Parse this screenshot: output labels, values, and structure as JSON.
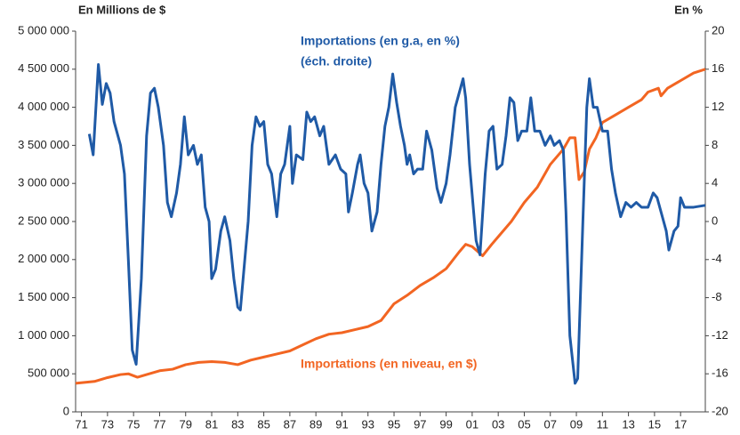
{
  "chart_data": {
    "type": "line",
    "y_label": "En Millions de $",
    "y2_label": "En %",
    "xlim": [
      1970.55,
      2018.9
    ],
    "xticks": [
      {
        "value": 1971,
        "label": "71"
      },
      {
        "value": 1973,
        "label": "73"
      },
      {
        "value": 1975,
        "label": "75"
      },
      {
        "value": 1977,
        "label": "77"
      },
      {
        "value": 1979,
        "label": "79"
      },
      {
        "value": 1981,
        "label": "81"
      },
      {
        "value": 1983,
        "label": "83"
      },
      {
        "value": 1985,
        "label": "85"
      },
      {
        "value": 1987,
        "label": "87"
      },
      {
        "value": 1989,
        "label": "89"
      },
      {
        "value": 1991,
        "label": "91"
      },
      {
        "value": 1993,
        "label": "93"
      },
      {
        "value": 1995,
        "label": "95"
      },
      {
        "value": 1997,
        "label": "97"
      },
      {
        "value": 1999,
        "label": "99"
      },
      {
        "value": 2001,
        "label": "01"
      },
      {
        "value": 2003,
        "label": "03"
      },
      {
        "value": 2005,
        "label": "05"
      },
      {
        "value": 2007,
        "label": "07"
      },
      {
        "value": 2009,
        "label": "09"
      },
      {
        "value": 2011,
        "label": "11"
      },
      {
        "value": 2013,
        "label": "13"
      },
      {
        "value": 2015,
        "label": "15"
      },
      {
        "value": 2017,
        "label": "17"
      }
    ],
    "ylim": [
      0,
      5000000
    ],
    "yticks": [
      0,
      {
        "value": 500000,
        "label": "500 000"
      },
      {
        "value": 1000000,
        "label": "1 000 000"
      },
      {
        "value": 1500000,
        "label": "1 500 000"
      },
      {
        "value": 2000000,
        "label": "2 000 000"
      },
      {
        "value": 2500000,
        "label": "2 500 000"
      },
      {
        "value": 3000000,
        "label": "3 000 000"
      },
      {
        "value": 3500000,
        "label": "3 500 000"
      },
      {
        "value": 4000000,
        "label": "4 000 000"
      },
      {
        "value": 4500000,
        "label": "4 500 000"
      },
      {
        "value": 5000000,
        "label": "5 000 000"
      }
    ],
    "y2lim": [
      -20,
      20
    ],
    "y2ticks": [
      -20,
      -16,
      -12,
      -8,
      -4,
      0,
      4,
      8,
      12,
      16,
      20
    ],
    "grid": false,
    "series": [
      {
        "name": "Importations (en niveau, en $)",
        "color": "#f26522",
        "axis": "y",
        "x": [
          1970.55,
          1972,
          1973,
          1974,
          1974.6,
          1975.3,
          1976,
          1977,
          1978,
          1979,
          1980,
          1981,
          1982,
          1983,
          1984,
          1985,
          1986,
          1987,
          1988,
          1989,
          1990,
          1991,
          1992,
          1993,
          1994,
          1995,
          1996,
          1997,
          1998,
          1999,
          2000,
          2000.5,
          2001,
          2001.8,
          2002.5,
          2003,
          2004,
          2005,
          2006,
          2007,
          2008,
          2008.5,
          2008.9,
          2009.2,
          2009.6,
          2010,
          2010.5,
          2011,
          2012,
          2013,
          2014,
          2014.5,
          2015.3,
          2015.5,
          2016,
          2017,
          2018,
          2018.9
        ],
        "values": [
          375000,
          400000,
          450000,
          490000,
          500000,
          455000,
          490000,
          540000,
          560000,
          620000,
          650000,
          660000,
          650000,
          620000,
          680000,
          720000,
          760000,
          800000,
          880000,
          960000,
          1020000,
          1040000,
          1080000,
          1120000,
          1200000,
          1420000,
          1530000,
          1660000,
          1760000,
          1880000,
          2100000,
          2200000,
          2170000,
          2050000,
          2200000,
          2300000,
          2500000,
          2750000,
          2950000,
          3250000,
          3450000,
          3600000,
          3600000,
          3050000,
          3150000,
          3450000,
          3600000,
          3800000,
          3900000,
          4000000,
          4100000,
          4200000,
          4250000,
          4150000,
          4250000,
          4350000,
          4450000,
          4500000
        ]
      },
      {
        "name": "Importations (en g.a, en %)",
        "note": "(éch. droite)",
        "color": "#1f5aa6",
        "axis": "y2",
        "x": [
          1971.6,
          1971.9,
          1972.3,
          1972.6,
          1972.9,
          1973.2,
          1973.5,
          1974,
          1974.3,
          1974.6,
          1974.9,
          1975.2,
          1975.6,
          1976,
          1976.3,
          1976.6,
          1976.9,
          1977.3,
          1977.6,
          1977.9,
          1978.3,
          1978.6,
          1978.9,
          1979.2,
          1979.6,
          1979.9,
          1980.2,
          1980.5,
          1980.8,
          1981,
          1981.3,
          1981.7,
          1982,
          1982.4,
          1982.7,
          1983,
          1983.2,
          1983.8,
          1984.1,
          1984.4,
          1984.7,
          1985,
          1985.3,
          1985.6,
          1986,
          1986.3,
          1986.6,
          1987,
          1987.2,
          1987.5,
          1988,
          1988.3,
          1988.6,
          1988.9,
          1989.3,
          1989.6,
          1990,
          1990.5,
          1990.9,
          1991.3,
          1991.5,
          1991.8,
          1992.2,
          1992.4,
          1992.7,
          1993,
          1993.3,
          1993.7,
          1994,
          1994.3,
          1994.6,
          1994.9,
          1995.2,
          1995.5,
          1995.8,
          1996,
          1996.2,
          1996.5,
          1996.8,
          1997.2,
          1997.5,
          1997.9,
          1998.3,
          1998.6,
          1999,
          1999.3,
          1999.7,
          2000,
          2000.3,
          2000.5,
          2000.8,
          2001.3,
          2001.6,
          2002,
          2002.3,
          2002.6,
          2002.9,
          2003.3,
          2003.6,
          2003.9,
          2004.2,
          2004.5,
          2004.8,
          2005.2,
          2005.5,
          2005.8,
          2006.2,
          2006.6,
          2007,
          2007.3,
          2007.7,
          2008,
          2008.2,
          2008.5,
          2008.9,
          2009.1,
          2009.5,
          2009.8,
          2010,
          2010.3,
          2010.6,
          2011,
          2011.4,
          2011.7,
          2012,
          2012.4,
          2012.8,
          2013.2,
          2013.6,
          2014,
          2014.5,
          2014.9,
          2015.2,
          2015.6,
          2015.9,
          2016.1,
          2016.5,
          2016.8,
          2017,
          2017.3,
          2018,
          2018.9
        ],
        "values": [
          9.2,
          7,
          16.5,
          12.3,
          14.5,
          13.5,
          10.5,
          8,
          5,
          -4,
          -13.5,
          -15,
          -6,
          9,
          13.5,
          14,
          12,
          8,
          2,
          0.5,
          3,
          6,
          11,
          7,
          8,
          6,
          7,
          1.5,
          0,
          -6,
          -5,
          -1,
          0.5,
          -2,
          -6,
          -9,
          -9.3,
          0,
          8,
          11,
          10,
          10.5,
          6,
          5,
          0.5,
          5,
          6,
          10,
          4,
          7,
          6.5,
          11.5,
          10.5,
          11,
          9,
          10,
          6,
          7,
          5.5,
          5,
          1,
          3,
          6,
          7,
          4,
          3,
          -1,
          1,
          6,
          10,
          12,
          15.5,
          12.5,
          10,
          8,
          6,
          7,
          5,
          5.5,
          5.5,
          9.5,
          7.5,
          3.5,
          2,
          4,
          7,
          12,
          13.5,
          15,
          13,
          6,
          -2,
          -3.5,
          5,
          9.5,
          10,
          5.5,
          6,
          9,
          13,
          12.5,
          8.5,
          9.5,
          9.5,
          13,
          9.5,
          9.5,
          8,
          9,
          8,
          8.5,
          7.5,
          1,
          -12,
          -17,
          -16.5,
          0,
          12,
          15,
          12,
          12,
          9.5,
          9.5,
          5.5,
          3,
          0.5,
          2,
          1.5,
          2,
          1.5,
          1.5,
          3,
          2.5,
          0.5,
          -1,
          -3,
          -1,
          -0.5,
          2.5,
          1.5,
          1.5,
          1.7
        ]
      }
    ]
  }
}
